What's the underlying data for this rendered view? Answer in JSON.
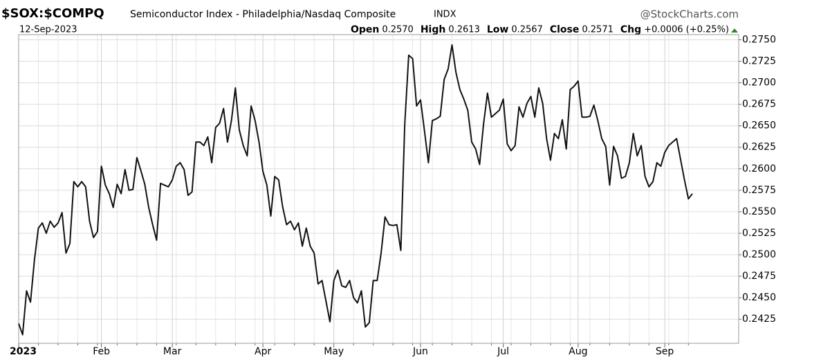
{
  "chart_data": {
    "type": "line",
    "title": "$SOX:$COMPQ",
    "subtitle": "Semiconductor Index - Philadelphia/Nasdaq Composite",
    "exchange": "INDX",
    "source": "@StockCharts.com",
    "date": "12-Sep-2023",
    "quote": [
      {
        "label": "Open",
        "value": "0.2570"
      },
      {
        "label": "High",
        "value": "0.2613"
      },
      {
        "label": "Low",
        "value": "0.2567"
      },
      {
        "label": "Close",
        "value": "0.2571"
      },
      {
        "label": "Chg",
        "value": "+0.0006 (+0.25%)"
      }
    ],
    "change_color": "#2a8a2a",
    "categories": [
      "2023",
      null,
      null,
      null,
      null,
      null,
      null,
      null,
      null,
      null,
      null,
      null,
      null,
      null,
      null,
      null,
      null,
      null,
      null,
      null,
      null,
      "Feb",
      null,
      null,
      null,
      null,
      null,
      null,
      null,
      null,
      null,
      null,
      null,
      null,
      null,
      null,
      null,
      null,
      null,
      "Mar",
      null,
      null,
      null,
      null,
      null,
      null,
      null,
      null,
      null,
      null,
      null,
      null,
      null,
      null,
      null,
      null,
      null,
      null,
      null,
      null,
      null,
      null,
      "Apr",
      null,
      null,
      null,
      null,
      null,
      null,
      null,
      null,
      null,
      null,
      null,
      null,
      null,
      null,
      null,
      null,
      null,
      "May",
      null,
      null,
      null,
      null,
      null,
      null,
      null,
      null,
      null,
      null,
      null,
      null,
      null,
      null,
      null,
      null,
      null,
      null,
      null,
      null,
      null,
      "Jun",
      null,
      null,
      null,
      null,
      null,
      null,
      null,
      null,
      null,
      null,
      null,
      null,
      null,
      null,
      null,
      null,
      null,
      null,
      null,
      null,
      "Jul",
      null,
      null,
      null,
      null,
      null,
      null,
      null,
      null,
      null,
      null,
      null,
      null,
      null,
      null,
      null,
      null,
      null,
      null,
      "Aug",
      null,
      null,
      null,
      null,
      null,
      null,
      null,
      null,
      null,
      null,
      null,
      null,
      null,
      null,
      null,
      null,
      null,
      null,
      null,
      null,
      null,
      "Sep",
      null,
      null,
      null,
      null,
      null,
      null,
      null
    ],
    "series": [
      {
        "name": "$SOX:$COMPQ",
        "color": "#111111",
        "values": [
          0.242,
          0.2407,
          0.2458,
          0.2445,
          0.2494,
          0.2531,
          0.2537,
          0.2525,
          0.2539,
          0.2532,
          0.2537,
          0.2549,
          0.2502,
          0.2513,
          0.2585,
          0.2579,
          0.2585,
          0.2579,
          0.2539,
          0.252,
          0.2527,
          0.2603,
          0.2581,
          0.2571,
          0.2555,
          0.2582,
          0.2571,
          0.2599,
          0.2575,
          0.2576,
          0.2613,
          0.2598,
          0.2582,
          0.2555,
          0.2535,
          0.2517,
          0.2583,
          0.2581,
          0.2579,
          0.2587,
          0.2603,
          0.2607,
          0.2599,
          0.2569,
          0.2573,
          0.2631,
          0.2631,
          0.2627,
          0.2637,
          0.2607,
          0.2648,
          0.2653,
          0.267,
          0.2631,
          0.2656,
          0.2694,
          0.2645,
          0.2627,
          0.2615,
          0.2673,
          0.2656,
          0.2631,
          0.2597,
          0.2581,
          0.2545,
          0.2591,
          0.2587,
          0.2556,
          0.2535,
          0.2539,
          0.2529,
          0.2537,
          0.251,
          0.2531,
          0.251,
          0.2502,
          0.2466,
          0.247,
          0.2446,
          0.2422,
          0.247,
          0.2482,
          0.2464,
          0.2462,
          0.247,
          0.245,
          0.2444,
          0.2458,
          0.2416,
          0.2421,
          0.247,
          0.247,
          0.2502,
          0.2544,
          0.2535,
          0.2534,
          0.2535,
          0.2505,
          0.2652,
          0.2732,
          0.2728,
          0.2673,
          0.268,
          0.2644,
          0.2607,
          0.2656,
          0.2658,
          0.2661,
          0.2704,
          0.2716,
          0.2744,
          0.2712,
          0.2692,
          0.2681,
          0.2668,
          0.2631,
          0.2623,
          0.2605,
          0.2652,
          0.2688,
          0.266,
          0.2664,
          0.2668,
          0.2681,
          0.2629,
          0.2621,
          0.2627,
          0.2672,
          0.266,
          0.2676,
          0.2684,
          0.266,
          0.2694,
          0.2676,
          0.2635,
          0.261,
          0.2641,
          0.2635,
          0.2657,
          0.2623,
          0.2692,
          0.2696,
          0.2702,
          0.266,
          0.266,
          0.2661,
          0.2674,
          0.2656,
          0.2635,
          0.2626,
          0.2581,
          0.2626,
          0.2615,
          0.2589,
          0.2591,
          0.2607,
          0.2641,
          0.2615,
          0.2627,
          0.2591,
          0.2579,
          0.2585,
          0.2607,
          0.2603,
          0.2619,
          0.2627,
          0.2631,
          0.2635,
          0.2611,
          0.2587,
          0.2565,
          0.2571
        ]
      }
    ],
    "ylim": [
      0.2397,
      0.2756
    ],
    "yticks": [
      {
        "value": 0.2425,
        "label": "0.2425"
      },
      {
        "value": 0.245,
        "label": "0.2450"
      },
      {
        "value": 0.2475,
        "label": "0.2475"
      },
      {
        "value": 0.25,
        "label": "0.2500"
      },
      {
        "value": 0.2525,
        "label": "0.2525"
      },
      {
        "value": 0.255,
        "label": "0.2550"
      },
      {
        "value": 0.2575,
        "label": "0.2575"
      },
      {
        "value": 0.26,
        "label": "0.2600"
      },
      {
        "value": 0.2625,
        "label": "0.2625"
      },
      {
        "value": 0.265,
        "label": "0.2650"
      },
      {
        "value": 0.2675,
        "label": "0.2675"
      },
      {
        "value": 0.27,
        "label": "0.2700"
      },
      {
        "value": 0.2725,
        "label": "0.2725"
      },
      {
        "value": 0.275,
        "label": "0.2750"
      }
    ],
    "grid": true
  }
}
